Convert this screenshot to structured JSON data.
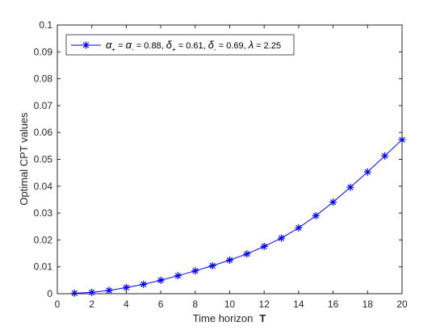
{
  "chart_data": {
    "type": "line",
    "xlabel": "Time horizon",
    "xlabel_symbol": "T",
    "ylabel": "Optimal CPT values",
    "xlim": [
      0,
      20
    ],
    "ylim": [
      0,
      0.1
    ],
    "x_ticks": [
      0,
      2,
      4,
      6,
      8,
      10,
      12,
      14,
      16,
      18,
      20
    ],
    "x_tick_labels": [
      "0",
      "2",
      "4",
      "6",
      "8",
      "10",
      "12",
      "14",
      "16",
      "18",
      "20"
    ],
    "y_ticks": [
      0,
      0.01,
      0.02,
      0.03,
      0.04,
      0.05,
      0.06,
      0.07,
      0.08,
      0.09,
      0.1
    ],
    "y_tick_labels": [
      "0",
      "0.01",
      "0.02",
      "0.03",
      "0.04",
      "0.05",
      "0.06",
      "0.07",
      "0.08",
      "0.09",
      "0.1"
    ],
    "grid": false,
    "legend_position": "top-left",
    "legend_text": "α+ = α- = 0.88, δ+ = 0.61, δ- = 0.69, λ = 2.25",
    "series": [
      {
        "name": "α+ = α- = 0.88, δ+ = 0.61, δ- = 0.69, λ = 2.25",
        "color": "#0000ff",
        "marker": "asterisk",
        "x": [
          1,
          2,
          3,
          4,
          5,
          6,
          7,
          8,
          9,
          10,
          11,
          12,
          13,
          14,
          15,
          16,
          17,
          18,
          19,
          20
        ],
        "y": [
          0.0002,
          0.0005,
          0.0012,
          0.0023,
          0.0035,
          0.005,
          0.0067,
          0.0085,
          0.0104,
          0.0125,
          0.0148,
          0.0176,
          0.0207,
          0.0245,
          0.029,
          0.0341,
          0.0396,
          0.0453,
          0.0513,
          0.0573
        ]
      }
    ]
  }
}
